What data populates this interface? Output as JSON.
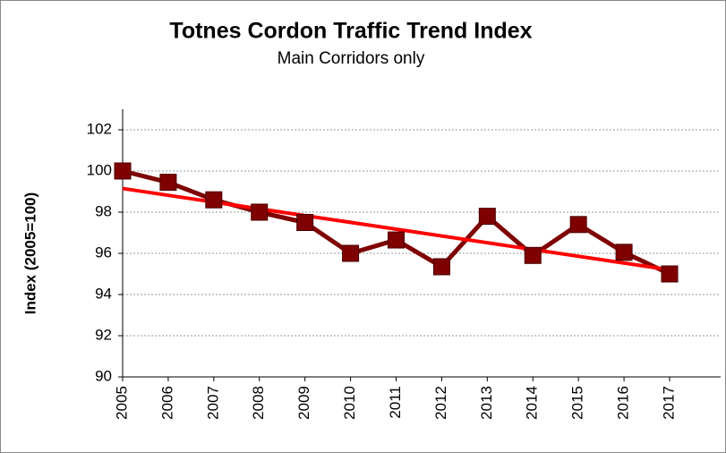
{
  "chart_data": {
    "type": "line",
    "title": "Totnes Cordon Traffic Trend Index",
    "subtitle": "Main Corridors only",
    "y_label": "Index (2005=100)",
    "categories": [
      "2005",
      "2006",
      "2007",
      "2008",
      "2009",
      "2010",
      "2011",
      "2012",
      "2013",
      "2014",
      "2015",
      "2016",
      "2017"
    ],
    "series": [
      {
        "color": "#7f0000",
        "values": [
          100,
          99.45,
          98.6,
          98.0,
          97.5,
          96.0,
          96.65,
          95.35,
          97.8,
          95.9,
          97.4,
          96.05,
          95.0
        ]
      }
    ],
    "trend": {
      "color": "#ff0000",
      "values": [
        99.15,
        95.2
      ]
    },
    "ylim": [
      90,
      103
    ],
    "yticks": [
      90,
      92,
      94,
      96,
      98,
      100,
      102
    ],
    "grid": true
  }
}
